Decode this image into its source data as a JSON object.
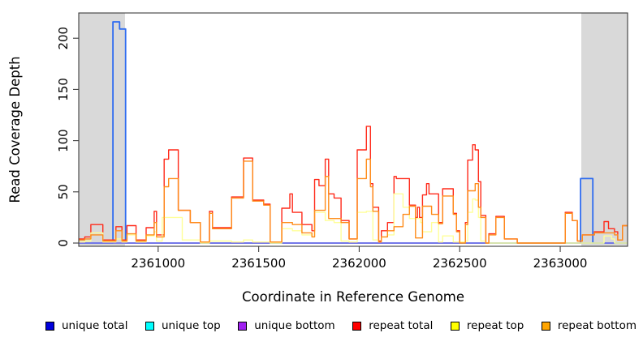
{
  "chart_data": {
    "type": "line",
    "title": "",
    "xlabel": "Coordinate in Reference Genome",
    "ylabel": "Read Coverage Depth",
    "xlim": [
      2360605,
      2363335
    ],
    "ylim": [
      0,
      225
    ],
    "x_ticks": [
      2361000,
      2361500,
      2362000,
      2362500,
      2363000
    ],
    "x_tick_labels": [
      "2361000",
      "2361500",
      "2362000",
      "2362500",
      "2363000"
    ],
    "y_ticks": [
      0,
      50,
      100,
      150,
      200
    ],
    "y_tick_labels": [
      "0",
      "50",
      "100",
      "150",
      "200"
    ],
    "grid": false,
    "legend_position": "bottom",
    "shaded_regions": [
      {
        "name": "masked-region-left",
        "x0": 2360605,
        "x1": 2360835,
        "color": "#d9d9d9"
      },
      {
        "name": "masked-region-right",
        "x0": 2363105,
        "x1": 2363335,
        "color": "#d9d9d9"
      }
    ],
    "series": [
      {
        "name": "unique total",
        "line_color": "#2e6bf0",
        "legend_color": "#0000dd",
        "width": 1.8,
        "points": [
          [
            2360605,
            0
          ],
          [
            2360775,
            216
          ],
          [
            2360808,
            209
          ],
          [
            2360838,
            0
          ],
          [
            2363101,
            63
          ],
          [
            2363162,
            0
          ]
        ]
      },
      {
        "name": "unique top",
        "line_color": "#00e5e5",
        "legend_color": "#00ffff",
        "width": 1.4,
        "points": [
          [
            2360605,
            0
          ]
        ]
      },
      {
        "name": "unique bottom",
        "line_color": "#8a63e8",
        "legend_color": "#a020f0",
        "width": 1.6,
        "points": [
          [
            2360605,
            0
          ]
        ]
      },
      {
        "name": "repeat total",
        "line_color": "#ff2a1a",
        "legend_color": "#ff0000",
        "width": 1.4,
        "points": [
          [
            2360605,
            4
          ],
          [
            2360635,
            6
          ],
          [
            2360665,
            18
          ],
          [
            2360725,
            3
          ],
          [
            2360790,
            16
          ],
          [
            2360820,
            3
          ],
          [
            2360845,
            17
          ],
          [
            2360890,
            3
          ],
          [
            2360940,
            15
          ],
          [
            2360980,
            31
          ],
          [
            2360992,
            8
          ],
          [
            2361030,
            82
          ],
          [
            2361052,
            91
          ],
          [
            2361100,
            32
          ],
          [
            2361160,
            20
          ],
          [
            2361210,
            1
          ],
          [
            2361255,
            31
          ],
          [
            2361270,
            15
          ],
          [
            2361365,
            45
          ],
          [
            2361425,
            83
          ],
          [
            2361470,
            42
          ],
          [
            2361525,
            38
          ],
          [
            2361557,
            1
          ],
          [
            2361615,
            34
          ],
          [
            2361655,
            48
          ],
          [
            2361668,
            30
          ],
          [
            2361715,
            18
          ],
          [
            2361765,
            12
          ],
          [
            2361778,
            62
          ],
          [
            2361800,
            56
          ],
          [
            2361831,
            82
          ],
          [
            2361848,
            48
          ],
          [
            2361875,
            44
          ],
          [
            2361910,
            22
          ],
          [
            2361950,
            4
          ],
          [
            2361990,
            91
          ],
          [
            2362036,
            114
          ],
          [
            2362056,
            58
          ],
          [
            2362068,
            35
          ],
          [
            2362097,
            2
          ],
          [
            2362110,
            12
          ],
          [
            2362141,
            20
          ],
          [
            2362173,
            65
          ],
          [
            2362185,
            63
          ],
          [
            2362250,
            37
          ],
          [
            2362280,
            25
          ],
          [
            2362290,
            35
          ],
          [
            2362300,
            25
          ],
          [
            2362315,
            47
          ],
          [
            2362335,
            58
          ],
          [
            2362347,
            48
          ],
          [
            2362395,
            20
          ],
          [
            2362415,
            53
          ],
          [
            2362468,
            29
          ],
          [
            2362484,
            12
          ],
          [
            2362500,
            1
          ],
          [
            2362528,
            20
          ],
          [
            2362540,
            81
          ],
          [
            2362564,
            96
          ],
          [
            2362577,
            91
          ],
          [
            2362593,
            60
          ],
          [
            2362605,
            27
          ],
          [
            2362630,
            0
          ],
          [
            2362645,
            9
          ],
          [
            2362680,
            26
          ],
          [
            2362722,
            4
          ],
          [
            2362786,
            0
          ],
          [
            2363025,
            30
          ],
          [
            2363060,
            22
          ],
          [
            2363085,
            2
          ],
          [
            2363110,
            8
          ],
          [
            2363170,
            11
          ],
          [
            2363218,
            21
          ],
          [
            2363240,
            14
          ],
          [
            2363270,
            11
          ],
          [
            2363286,
            3
          ],
          [
            2363310,
            17
          ]
        ]
      },
      {
        "name": "repeat top",
        "line_color": "#ffff99",
        "legend_color": "#ffff00",
        "width": 1.4,
        "points": [
          [
            2360605,
            1
          ],
          [
            2360635,
            2
          ],
          [
            2360665,
            10
          ],
          [
            2360725,
            1
          ],
          [
            2360790,
            4
          ],
          [
            2360820,
            1
          ],
          [
            2360845,
            8
          ],
          [
            2360890,
            1
          ],
          [
            2360940,
            7
          ],
          [
            2360980,
            11
          ],
          [
            2360992,
            2
          ],
          [
            2361020,
            25
          ],
          [
            2361120,
            3
          ],
          [
            2361210,
            0
          ],
          [
            2361255,
            2
          ],
          [
            2361365,
            1
          ],
          [
            2361425,
            3
          ],
          [
            2361470,
            1
          ],
          [
            2361557,
            0
          ],
          [
            2361615,
            14
          ],
          [
            2361668,
            12
          ],
          [
            2361715,
            8
          ],
          [
            2361765,
            6
          ],
          [
            2361778,
            30
          ],
          [
            2361831,
            22
          ],
          [
            2361875,
            20
          ],
          [
            2361910,
            2
          ],
          [
            2361950,
            1
          ],
          [
            2361990,
            30
          ],
          [
            2362036,
            31
          ],
          [
            2362068,
            3
          ],
          [
            2362097,
            1
          ],
          [
            2362110,
            6
          ],
          [
            2362141,
            8
          ],
          [
            2362173,
            48
          ],
          [
            2362218,
            35
          ],
          [
            2362250,
            24
          ],
          [
            2362305,
            20
          ],
          [
            2362315,
            11
          ],
          [
            2362360,
            20
          ],
          [
            2362395,
            1
          ],
          [
            2362415,
            7
          ],
          [
            2362468,
            1
          ],
          [
            2362528,
            2
          ],
          [
            2362540,
            30
          ],
          [
            2362564,
            43
          ],
          [
            2362577,
            42
          ],
          [
            2362593,
            25
          ],
          [
            2362605,
            2
          ],
          [
            2362630,
            0
          ],
          [
            2363218,
            7
          ],
          [
            2363255,
            4
          ],
          [
            2363270,
            0
          ]
        ]
      },
      {
        "name": "repeat bottom",
        "line_color": "#ff8c1a",
        "legend_color": "#ffa500",
        "width": 1.4,
        "points": [
          [
            2360605,
            3
          ],
          [
            2360635,
            4
          ],
          [
            2360665,
            8
          ],
          [
            2360725,
            2
          ],
          [
            2360790,
            12
          ],
          [
            2360820,
            2
          ],
          [
            2360845,
            9
          ],
          [
            2360890,
            2
          ],
          [
            2360940,
            8
          ],
          [
            2360980,
            20
          ],
          [
            2360992,
            6
          ],
          [
            2361030,
            55
          ],
          [
            2361052,
            63
          ],
          [
            2361100,
            32
          ],
          [
            2361160,
            20
          ],
          [
            2361210,
            1
          ],
          [
            2361255,
            29
          ],
          [
            2361270,
            14
          ],
          [
            2361365,
            44
          ],
          [
            2361425,
            80
          ],
          [
            2361470,
            41
          ],
          [
            2361525,
            37
          ],
          [
            2361557,
            1
          ],
          [
            2361615,
            20
          ],
          [
            2361668,
            18
          ],
          [
            2361715,
            10
          ],
          [
            2361765,
            6
          ],
          [
            2361778,
            32
          ],
          [
            2361831,
            65
          ],
          [
            2361848,
            24
          ],
          [
            2361910,
            20
          ],
          [
            2361950,
            4
          ],
          [
            2361990,
            63
          ],
          [
            2362036,
            82
          ],
          [
            2362056,
            55
          ],
          [
            2362068,
            31
          ],
          [
            2362097,
            1
          ],
          [
            2362110,
            6
          ],
          [
            2362141,
            12
          ],
          [
            2362173,
            16
          ],
          [
            2362218,
            28
          ],
          [
            2362250,
            36
          ],
          [
            2362280,
            5
          ],
          [
            2362315,
            36
          ],
          [
            2362360,
            28
          ],
          [
            2362395,
            19
          ],
          [
            2362415,
            46
          ],
          [
            2362468,
            28
          ],
          [
            2362484,
            11
          ],
          [
            2362500,
            0
          ],
          [
            2362528,
            18
          ],
          [
            2362540,
            51
          ],
          [
            2362577,
            58
          ],
          [
            2362593,
            35
          ],
          [
            2362605,
            25
          ],
          [
            2362630,
            0
          ],
          [
            2362645,
            8
          ],
          [
            2362680,
            25
          ],
          [
            2362722,
            4
          ],
          [
            2362786,
            0
          ],
          [
            2363025,
            29
          ],
          [
            2363060,
            22
          ],
          [
            2363085,
            2
          ],
          [
            2363110,
            8
          ],
          [
            2363170,
            10
          ],
          [
            2363270,
            8
          ],
          [
            2363286,
            3
          ],
          [
            2363310,
            17
          ]
        ]
      }
    ]
  },
  "legend": {
    "items": [
      {
        "label": "unique total",
        "color": "#0000dd"
      },
      {
        "label": "unique top",
        "color": "#00ffff"
      },
      {
        "label": "unique bottom",
        "color": "#a020f0"
      },
      {
        "label": "repeat total",
        "color": "#ff0000"
      },
      {
        "label": "repeat top",
        "color": "#ffff00"
      },
      {
        "label": "repeat bottom",
        "color": "#ffa500"
      }
    ]
  }
}
